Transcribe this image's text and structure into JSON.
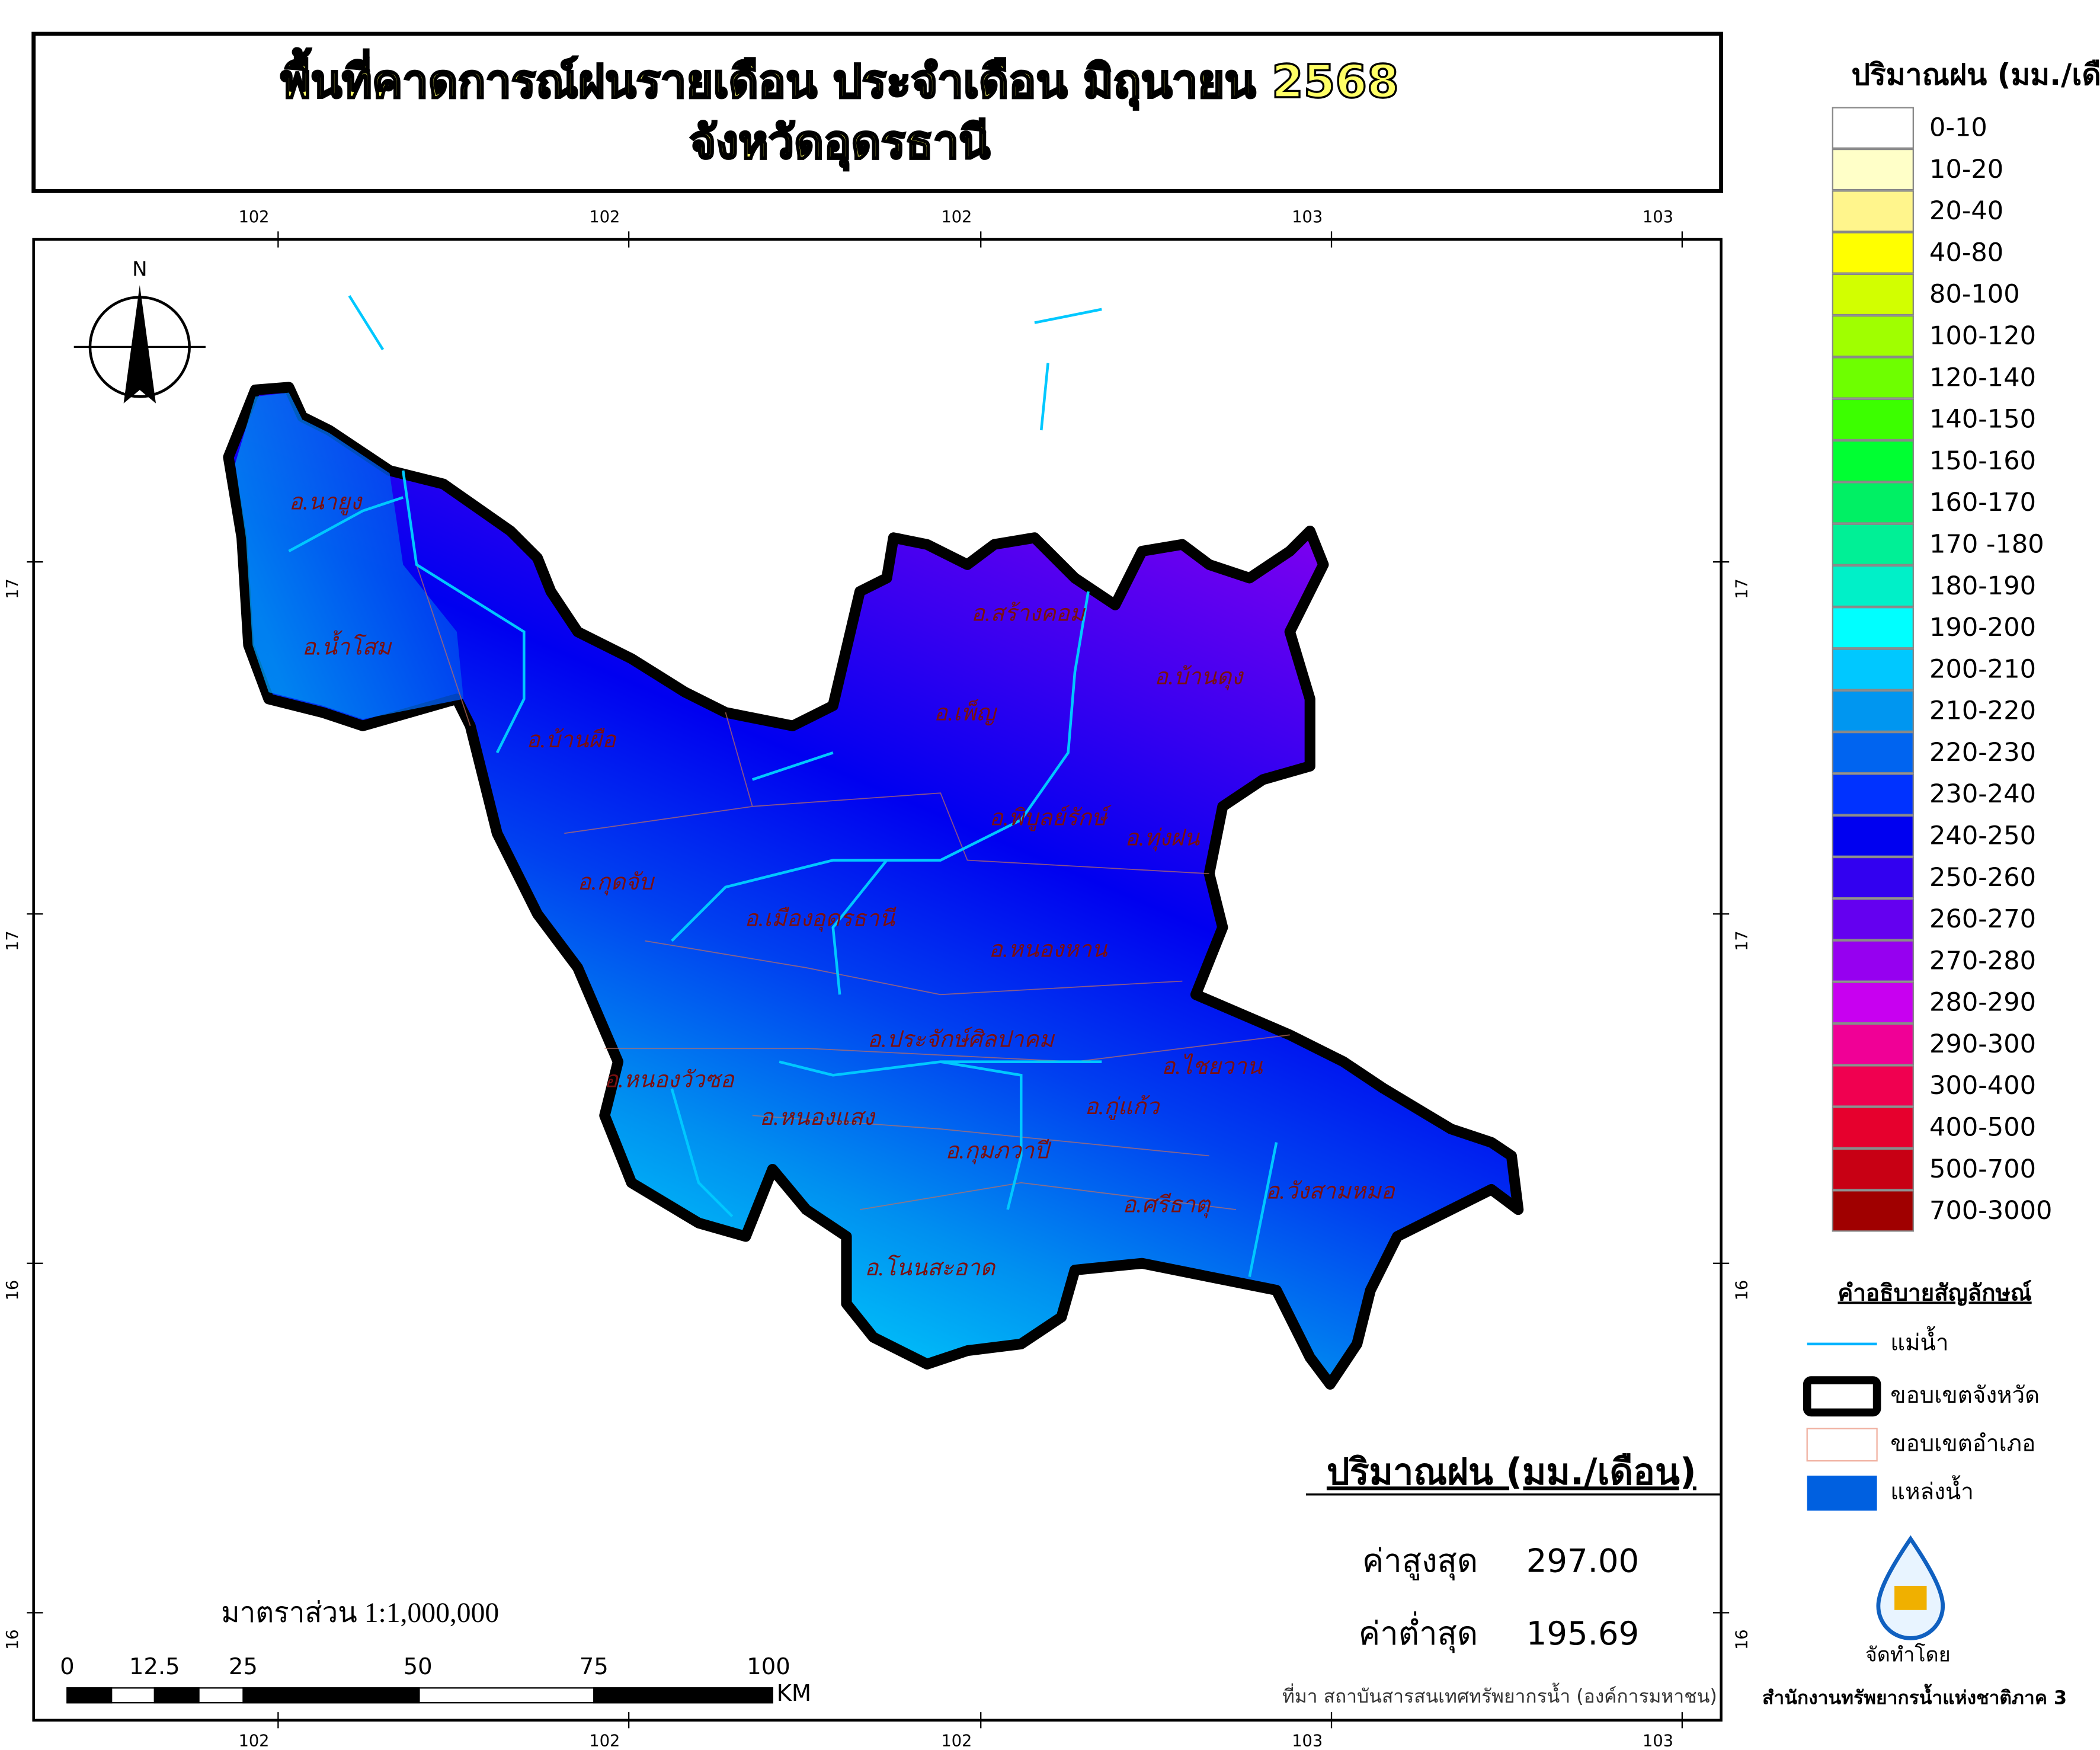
{
  "header": {
    "title": [
      "พื้นที่คาดการณ์ฝนรายเดือน ประจำเดือน มิถุนายน 2568",
      "จังหวัดอุดรธานี"
    ]
  },
  "grid": {
    "top": [
      "102",
      "102",
      "102",
      "103",
      "103"
    ],
    "bottom": [
      "102",
      "102",
      "102",
      "103",
      "103"
    ],
    "left": [
      "17",
      "17",
      "16",
      "16"
    ],
    "right": [
      "17",
      "17",
      "16",
      "16"
    ]
  },
  "compass": "N",
  "districts": [
    "อ.นายูง",
    "อ.น้ำโสม",
    "อ.บ้านผือ",
    "อ.สร้างคอม",
    "อ.บ้านดุง",
    "อ.เพ็ญ",
    "อ.พิบูลย์รักษ์",
    "อ.ทุ่งฝน",
    "อ.กุดจับ",
    "อ.เมืองอุดรธานี",
    "อ.หนองหาน",
    "อ.ประจักษ์ศิลปาคม",
    "อ.ไชยวาน",
    "อ.หนองวัวซอ",
    "อ.กู่แก้ว",
    "อ.หนองแสง",
    "อ.กุมภวาปี",
    "อ.ศรีธาตุ",
    "อ.วังสามหมอ",
    "อ.โนนสะอาด"
  ],
  "rain_legend": {
    "title": "ปริมาณฝน (มม./เดือน)",
    "classes": [
      {
        "label": "0-10",
        "color": "#ffffff"
      },
      {
        "label": "10-20",
        "color": "#ffffc8"
      },
      {
        "label": "20-40",
        "color": "#fff58c"
      },
      {
        "label": "40-80",
        "color": "#ffff00"
      },
      {
        "label": "80-100",
        "color": "#d2ff00"
      },
      {
        "label": "100-120",
        "color": "#a0ff00"
      },
      {
        "label": "120-140",
        "color": "#6eff00"
      },
      {
        "label": "140-150",
        "color": "#3cff00"
      },
      {
        "label": "150-160",
        "color": "#00ff32"
      },
      {
        "label": "160-170",
        "color": "#00f064"
      },
      {
        "label": "170 -180",
        "color": "#00f096"
      },
      {
        "label": "180-190",
        "color": "#00f0c8"
      },
      {
        "label": "190-200",
        "color": "#00ffff"
      },
      {
        "label": "200-210",
        "color": "#00c8ff"
      },
      {
        "label": "210-220",
        "color": "#0096f0"
      },
      {
        "label": "220-230",
        "color": "#0064f0"
      },
      {
        "label": "230-240",
        "color": "#0032ff"
      },
      {
        "label": "240-250",
        "color": "#0000f0"
      },
      {
        "label": "250-260",
        "color": "#3200f0"
      },
      {
        "label": "260-270",
        "color": "#6400f0"
      },
      {
        "label": "270-280",
        "color": "#9600f0"
      },
      {
        "label": "280-290",
        "color": "#c800f0"
      },
      {
        "label": "290-300",
        "color": "#f00096"
      },
      {
        "label": "300-400",
        "color": "#f00050"
      },
      {
        "label": "400-500",
        "color": "#e6002d"
      },
      {
        "label": "500-700",
        "color": "#c80014"
      },
      {
        "label": "700-3000",
        "color": "#a00000"
      }
    ]
  },
  "symbol_legend": {
    "title": "คำอธิบายสัญลักษณ์",
    "items": [
      "แม่น้ำ",
      "ขอบเขตจังหวัด",
      "ขอบเขตอำเภอ",
      "แหล่งน้ำ"
    ]
  },
  "stats": {
    "title": "ปริมาณฝน (มม./เดือน)",
    "max_label": "ค่าสูงสุด",
    "max_value": "297.00",
    "min_label": "ค่าต่ำสุด",
    "min_value": "195.69"
  },
  "scale": {
    "text": "มาตราส่วน  1:1,000,000",
    "ticks": [
      "0",
      "12.5",
      "25",
      "50",
      "75",
      "100"
    ],
    "unit": "KM"
  },
  "source": "ที่มา  สถาบันสารสนเทศทรัพยากรน้ำ (องค์การมหาชน)",
  "producer": {
    "label": "จัดทำโดย",
    "name": "สำนักงานทรัพยากรน้ำแห่งชาติภาค 3"
  }
}
